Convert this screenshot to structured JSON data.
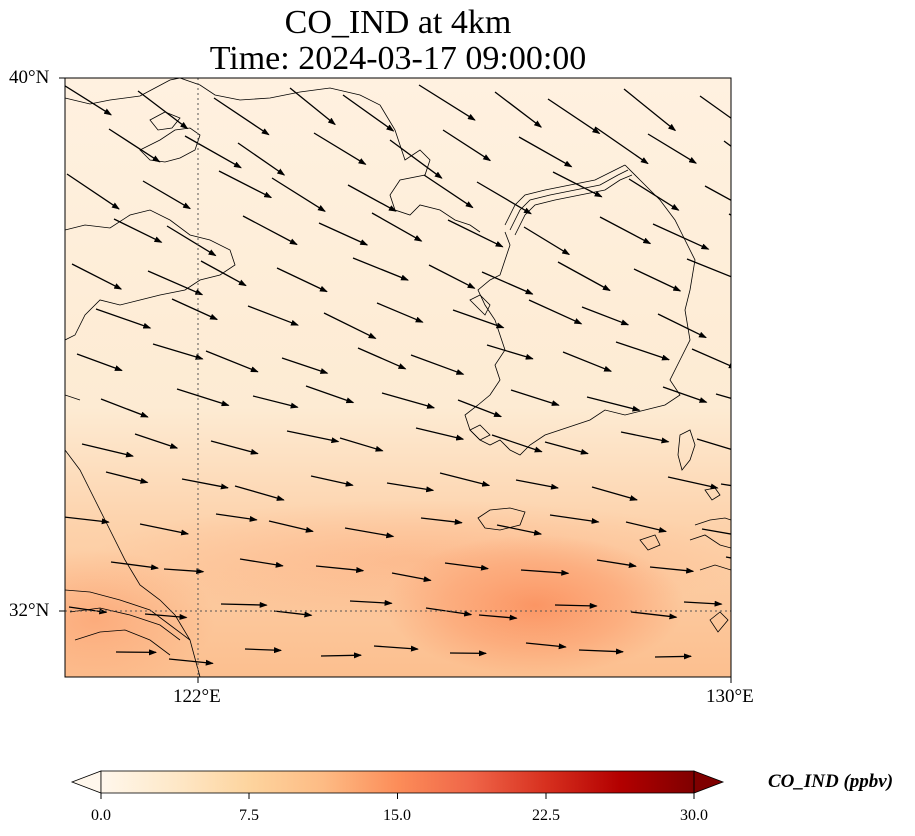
{
  "title_line1": "CO_IND at 4km",
  "title_line2": "Time: 2024-03-17 09:00:00",
  "axes": {
    "y_ticks": [
      "40°N",
      "32°N"
    ],
    "x_ticks": [
      "122°E",
      "130°E"
    ],
    "lon_range": [
      120,
      130
    ],
    "lat_range": [
      31,
      40
    ],
    "gridline_lon": 122,
    "gridline_lat": 32
  },
  "colorbar": {
    "label": "CO_IND (ppbv)",
    "ticks": [
      "0.0",
      "7.5",
      "15.0",
      "22.5",
      "30.0"
    ],
    "range": [
      0,
      30
    ],
    "colormap": "OrRd",
    "colors": [
      "#fff7ec",
      "#fee8c8",
      "#fdd49e",
      "#fdbb84",
      "#fc8d59",
      "#ef6548",
      "#d7301f",
      "#b30000",
      "#7f0000"
    ],
    "extend": "both"
  },
  "field": {
    "background_color": "#fdebd3",
    "north_color": "#fff1e0",
    "south_color": "#fcbf8f",
    "hotspot_color": "#fb9260",
    "hotspot_lon": 127.0,
    "hotspot_lat": 31.9
  },
  "wind_vector_color": "#000000",
  "coastline_color": "#000000"
}
